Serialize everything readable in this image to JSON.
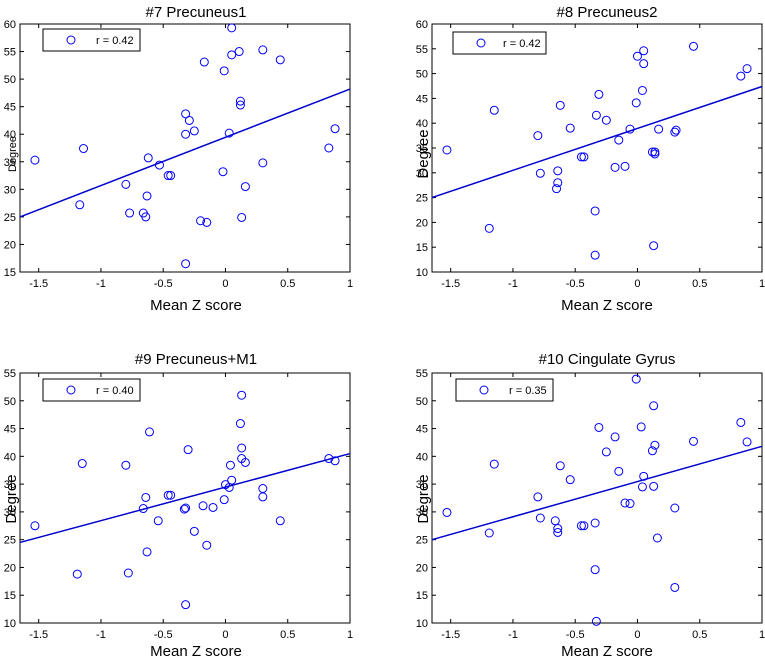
{
  "colors": {
    "marker": "#0000ff",
    "fit": "#0000cc",
    "axis": "#000000",
    "legend_border": "#000000"
  },
  "chart_data": [
    {
      "type": "scatter",
      "title": "#7  Precuneus1",
      "xlabel": "Mean Z score",
      "ylabel": "Degree",
      "xlim": [
        -1.65,
        1
      ],
      "ylim": [
        15,
        60
      ],
      "xticks": [
        -1.5,
        -1,
        -0.5,
        0,
        0.5,
        1
      ],
      "xtick_labels": [
        "-1.5",
        "-1",
        "-0.5",
        "0",
        "0.5",
        "1"
      ],
      "yticks": [
        15,
        20,
        25,
        30,
        35,
        40,
        45,
        50,
        55,
        60
      ],
      "ytick_labels": [
        "15",
        "20",
        "25",
        "30",
        "35",
        "40",
        "45",
        "50",
        "55",
        "60"
      ],
      "legend": "r = 0.42",
      "fit_line": {
        "x": [
          -1.65,
          1
        ],
        "y": [
          25.0,
          48.2
        ]
      },
      "points": [
        [
          -1.53,
          35.3
        ],
        [
          -1.17,
          27.2
        ],
        [
          -1.14,
          37.4
        ],
        [
          -0.8,
          30.9
        ],
        [
          -0.77,
          25.7
        ],
        [
          -0.66,
          25.7
        ],
        [
          -0.64,
          25.0
        ],
        [
          -0.63,
          28.8
        ],
        [
          -0.62,
          35.7
        ],
        [
          -0.53,
          34.4
        ],
        [
          -0.46,
          32.5
        ],
        [
          -0.44,
          32.5
        ],
        [
          -0.2,
          24.3
        ],
        [
          -0.15,
          24.0
        ],
        [
          -0.32,
          16.5
        ],
        [
          -0.32,
          43.7
        ],
        [
          -0.32,
          40.0
        ],
        [
          -0.29,
          42.5
        ],
        [
          -0.25,
          40.6
        ],
        [
          -0.17,
          53.1
        ],
        [
          -0.01,
          51.5
        ],
        [
          0.03,
          40.2
        ],
        [
          0.05,
          54.4
        ],
        [
          0.05,
          59.3
        ],
        [
          0.11,
          55.0
        ],
        [
          0.12,
          46.0
        ],
        [
          0.12,
          45.3
        ],
        [
          0.13,
          24.9
        ],
        [
          0.16,
          30.5
        ],
        [
          0.3,
          55.3
        ],
        [
          0.3,
          34.8
        ],
        [
          0.44,
          53.5
        ],
        [
          -0.02,
          33.2
        ],
        [
          0.83,
          37.5
        ],
        [
          0.88,
          41.0
        ]
      ]
    },
    {
      "type": "scatter",
      "title": "#8  Precuneus2",
      "xlabel": "Mean Z score",
      "ylabel": "Degree",
      "xlim": [
        -1.65,
        1
      ],
      "ylim": [
        10,
        60
      ],
      "xticks": [
        -1.5,
        -1,
        -0.5,
        0,
        0.5,
        1
      ],
      "xtick_labels": [
        "-1.5",
        "-1",
        "-0.5",
        "0",
        "0.5",
        "1"
      ],
      "yticks": [
        10,
        15,
        20,
        25,
        30,
        35,
        40,
        45,
        50,
        55,
        60
      ],
      "ytick_labels": [
        "10",
        "15",
        "20",
        "25",
        "30",
        "35",
        "40",
        "45",
        "50",
        "55",
        "60"
      ],
      "legend": "r = 0.42",
      "fit_line": {
        "x": [
          -1.65,
          1
        ],
        "y": [
          25.0,
          47.4
        ]
      },
      "points": [
        [
          -1.53,
          34.6
        ],
        [
          -1.19,
          18.8
        ],
        [
          -1.15,
          42.6
        ],
        [
          -0.8,
          37.5
        ],
        [
          -0.78,
          29.9
        ],
        [
          -0.65,
          26.8
        ],
        [
          -0.64,
          28.0
        ],
        [
          -0.64,
          30.4
        ],
        [
          -0.62,
          43.6
        ],
        [
          -0.54,
          39.0
        ],
        [
          -0.45,
          33.2
        ],
        [
          -0.43,
          33.2
        ],
        [
          -0.34,
          22.3
        ],
        [
          -0.34,
          13.4
        ],
        [
          -0.33,
          41.6
        ],
        [
          -0.31,
          45.8
        ],
        [
          -0.25,
          40.6
        ],
        [
          -0.18,
          31.1
        ],
        [
          -0.15,
          36.6
        ],
        [
          -0.1,
          31.3
        ],
        [
          -0.06,
          38.8
        ],
        [
          -0.01,
          44.1
        ],
        [
          0.0,
          53.5
        ],
        [
          0.04,
          46.6
        ],
        [
          0.05,
          52.0
        ],
        [
          0.05,
          54.6
        ],
        [
          0.12,
          34.2
        ],
        [
          0.13,
          15.3
        ],
        [
          0.14,
          33.8
        ],
        [
          0.14,
          34.2
        ],
        [
          0.17,
          38.8
        ],
        [
          0.3,
          38.2
        ],
        [
          0.31,
          38.6
        ],
        [
          0.45,
          55.5
        ],
        [
          0.83,
          49.5
        ],
        [
          0.88,
          51.0
        ]
      ]
    },
    {
      "type": "scatter",
      "title": "#9  Precuneus+M1",
      "xlabel": "Mean Z score",
      "ylabel": "Degree",
      "xlim": [
        -1.65,
        1
      ],
      "ylim": [
        10,
        55
      ],
      "xticks": [
        -1.5,
        -1,
        -0.5,
        0,
        0.5,
        1
      ],
      "xtick_labels": [
        "-1.5",
        "-1",
        "-0.5",
        "0",
        "0.5",
        "1"
      ],
      "yticks": [
        10,
        15,
        20,
        25,
        30,
        35,
        40,
        45,
        50,
        55
      ],
      "ytick_labels": [
        "10",
        "15",
        "20",
        "25",
        "30",
        "35",
        "40",
        "45",
        "50",
        "55"
      ],
      "legend": "r = 0.40",
      "fit_line": {
        "x": [
          -1.65,
          1
        ],
        "y": [
          24.5,
          40.5
        ]
      },
      "points": [
        [
          -1.53,
          27.5
        ],
        [
          -1.19,
          18.8
        ],
        [
          -1.15,
          38.7
        ],
        [
          -0.8,
          38.4
        ],
        [
          -0.78,
          19.0
        ],
        [
          -0.66,
          30.6
        ],
        [
          -0.64,
          32.6
        ],
        [
          -0.63,
          22.8
        ],
        [
          -0.61,
          44.4
        ],
        [
          -0.54,
          28.4
        ],
        [
          -0.46,
          33.0
        ],
        [
          -0.44,
          33.0
        ],
        [
          -0.33,
          30.5
        ],
        [
          -0.32,
          30.7
        ],
        [
          -0.32,
          13.3
        ],
        [
          -0.3,
          41.2
        ],
        [
          -0.25,
          26.5
        ],
        [
          -0.18,
          31.1
        ],
        [
          -0.15,
          24.0
        ],
        [
          -0.1,
          30.8
        ],
        [
          -0.01,
          32.2
        ],
        [
          0.0,
          34.9
        ],
        [
          0.03,
          34.4
        ],
        [
          0.04,
          38.4
        ],
        [
          0.05,
          35.7
        ],
        [
          0.12,
          45.9
        ],
        [
          0.13,
          41.5
        ],
        [
          0.13,
          51.0
        ],
        [
          0.13,
          39.6
        ],
        [
          0.16,
          38.9
        ],
        [
          0.3,
          32.7
        ],
        [
          0.3,
          34.2
        ],
        [
          0.44,
          28.4
        ],
        [
          0.83,
          39.6
        ],
        [
          0.88,
          39.2
        ]
      ]
    },
    {
      "type": "scatter",
      "title": "#10  Cingulate Gyrus",
      "xlabel": "Mean Z score",
      "ylabel": "Degree",
      "xlim": [
        -1.65,
        1
      ],
      "ylim": [
        10,
        55
      ],
      "xticks": [
        -1.5,
        -1,
        -0.5,
        0,
        0.5,
        1
      ],
      "xtick_labels": [
        "-1.5",
        "-1",
        "-0.5",
        "0",
        "0.5",
        "1"
      ],
      "yticks": [
        10,
        15,
        20,
        25,
        30,
        35,
        40,
        45,
        50,
        55
      ],
      "ytick_labels": [
        "10",
        "15",
        "20",
        "25",
        "30",
        "35",
        "40",
        "45",
        "50",
        "55"
      ],
      "legend": "r = 0.35",
      "fit_line": {
        "x": [
          -1.65,
          1
        ],
        "y": [
          25.0,
          41.8
        ]
      },
      "points": [
        [
          -1.53,
          29.9
        ],
        [
          -1.19,
          26.2
        ],
        [
          -1.15,
          38.6
        ],
        [
          -0.8,
          32.7
        ],
        [
          -0.78,
          28.9
        ],
        [
          -0.66,
          28.4
        ],
        [
          -0.64,
          27.0
        ],
        [
          -0.64,
          26.3
        ],
        [
          -0.62,
          38.3
        ],
        [
          -0.54,
          35.8
        ],
        [
          -0.45,
          27.5
        ],
        [
          -0.43,
          27.5
        ],
        [
          -0.34,
          19.6
        ],
        [
          -0.34,
          28.0
        ],
        [
          -0.33,
          10.3
        ],
        [
          -0.31,
          45.2
        ],
        [
          -0.25,
          40.8
        ],
        [
          -0.18,
          43.5
        ],
        [
          -0.15,
          37.3
        ],
        [
          -0.1,
          31.6
        ],
        [
          -0.06,
          31.5
        ],
        [
          -0.01,
          53.9
        ],
        [
          0.03,
          45.3
        ],
        [
          0.04,
          34.5
        ],
        [
          0.05,
          36.4
        ],
        [
          0.12,
          41.0
        ],
        [
          0.13,
          49.1
        ],
        [
          0.13,
          34.6
        ],
        [
          0.14,
          42.0
        ],
        [
          0.16,
          25.3
        ],
        [
          0.3,
          16.4
        ],
        [
          0.3,
          30.7
        ],
        [
          0.45,
          42.7
        ],
        [
          0.83,
          46.1
        ],
        [
          0.88,
          42.6
        ]
      ]
    }
  ]
}
